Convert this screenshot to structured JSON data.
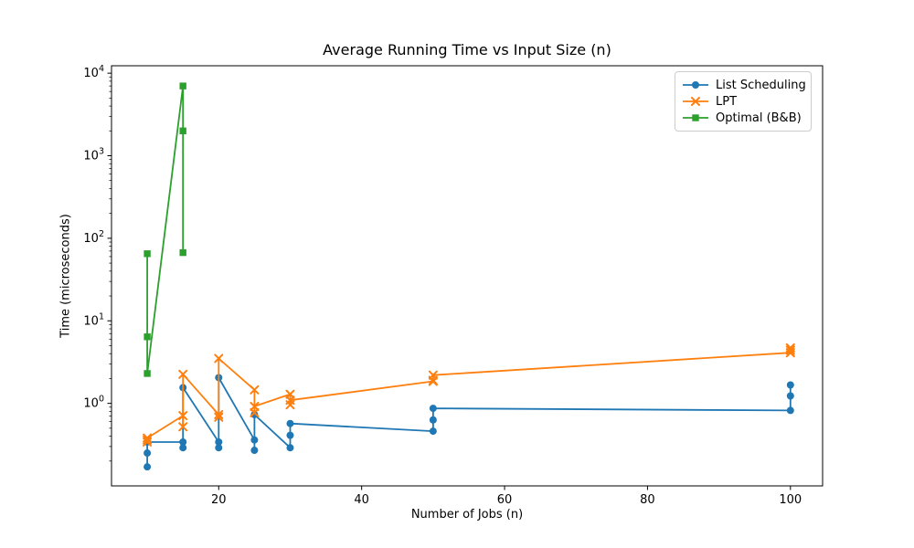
{
  "figure": {
    "background": "#ffffff",
    "frame_color": "#000000"
  },
  "chart_data": {
    "type": "line",
    "title": "Average Running Time vs Input Size (n)",
    "xlabel": "Number of Jobs (n)",
    "ylabel": "Time (microseconds)",
    "x_scale": "linear",
    "y_scale": "log",
    "xlim": [
      5,
      104.5
    ],
    "ylim_exp": [
      -1.0,
      4.09
    ],
    "xticks": [
      20,
      40,
      60,
      80,
      100
    ],
    "ytick_exponents": [
      0,
      1,
      2,
      3,
      4
    ],
    "grid": false,
    "legend_position": "upper right",
    "note": "three measured trials per n value; points listed in plotted order",
    "series": [
      {
        "name": "List Scheduling",
        "color": "#1f77b4",
        "marker": "circle",
        "points": [
          [
            10,
            0.17
          ],
          [
            10,
            0.25
          ],
          [
            10,
            0.34
          ],
          [
            15,
            0.34
          ],
          [
            15,
            0.29
          ],
          [
            15,
            1.55
          ],
          [
            20,
            0.34
          ],
          [
            20,
            0.29
          ],
          [
            20,
            2.05
          ],
          [
            25,
            0.36
          ],
          [
            25,
            0.27
          ],
          [
            25,
            0.73
          ],
          [
            30,
            0.29
          ],
          [
            30,
            0.41
          ],
          [
            30,
            0.57
          ],
          [
            50,
            0.46
          ],
          [
            50,
            0.63
          ],
          [
            50,
            0.87
          ],
          [
            100,
            0.82
          ],
          [
            100,
            1.23
          ],
          [
            100,
            1.67
          ]
        ]
      },
      {
        "name": "LPT",
        "color": "#ff7f0e",
        "marker": "x",
        "points": [
          [
            10,
            0.36
          ],
          [
            10,
            0.34
          ],
          [
            10,
            0.38
          ],
          [
            15,
            0.71
          ],
          [
            15,
            0.52
          ],
          [
            15,
            2.25
          ],
          [
            20,
            0.73
          ],
          [
            20,
            0.68
          ],
          [
            20,
            3.5
          ],
          [
            25,
            1.46
          ],
          [
            25,
            0.77
          ],
          [
            25,
            0.92
          ],
          [
            30,
            1.29
          ],
          [
            30,
            0.96
          ],
          [
            30,
            1.09
          ],
          [
            50,
            1.85
          ],
          [
            50,
            1.9
          ],
          [
            50,
            2.2
          ],
          [
            100,
            4.1
          ],
          [
            100,
            4.4
          ],
          [
            100,
            4.7
          ]
        ]
      },
      {
        "name": "Optimal (B&B)",
        "color": "#2ca02c",
        "marker": "square",
        "points": [
          [
            10,
            65
          ],
          [
            10,
            6.4
          ],
          [
            10,
            2.3
          ],
          [
            15,
            7000
          ],
          [
            15,
            2000
          ],
          [
            15,
            67
          ]
        ]
      }
    ]
  }
}
